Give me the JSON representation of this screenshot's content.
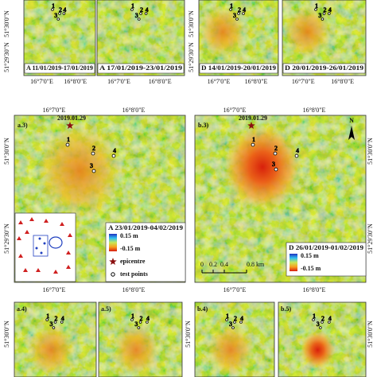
{
  "top_row": [
    {
      "label": "A 11/01/2019-17/01/2019"
    },
    {
      "label": "A 17/01/2019-23/01/2019"
    },
    {
      "label": "D 14/01/2019-20/01/2019"
    },
    {
      "label": "D 20/01/2019-26/01/2019"
    }
  ],
  "axes": {
    "x_ticks": [
      "16°7'0\"E",
      "16°8'0\"E"
    ],
    "y_ticks": [
      "51°30'0\"N",
      "51°29'30\"N"
    ]
  },
  "points": [
    "1",
    "2",
    "3",
    "4"
  ],
  "panel_a3": {
    "label": "a.3)",
    "date": "2019.01.29",
    "legend": {
      "period": "A 23/01/2019-04/02/2019",
      "max": "0.15 m",
      "min": "-0.15 m",
      "epicentre": "epicentre",
      "test_points": "test points"
    }
  },
  "panel_b3": {
    "label": "b.3)",
    "date": "2019.01.29",
    "north": "N",
    "scale": [
      "0",
      "0.2",
      "0.4",
      "0.8 km"
    ],
    "legend": {
      "period": "D 26/01/2019-01/02/2019",
      "max": "0.15 m",
      "min": "-0.15 m"
    }
  },
  "bottom_row": [
    {
      "label": "a.4)"
    },
    {
      "label": "a.5)"
    },
    {
      "label": "b.4)"
    },
    {
      "label": "b.5)"
    }
  ]
}
